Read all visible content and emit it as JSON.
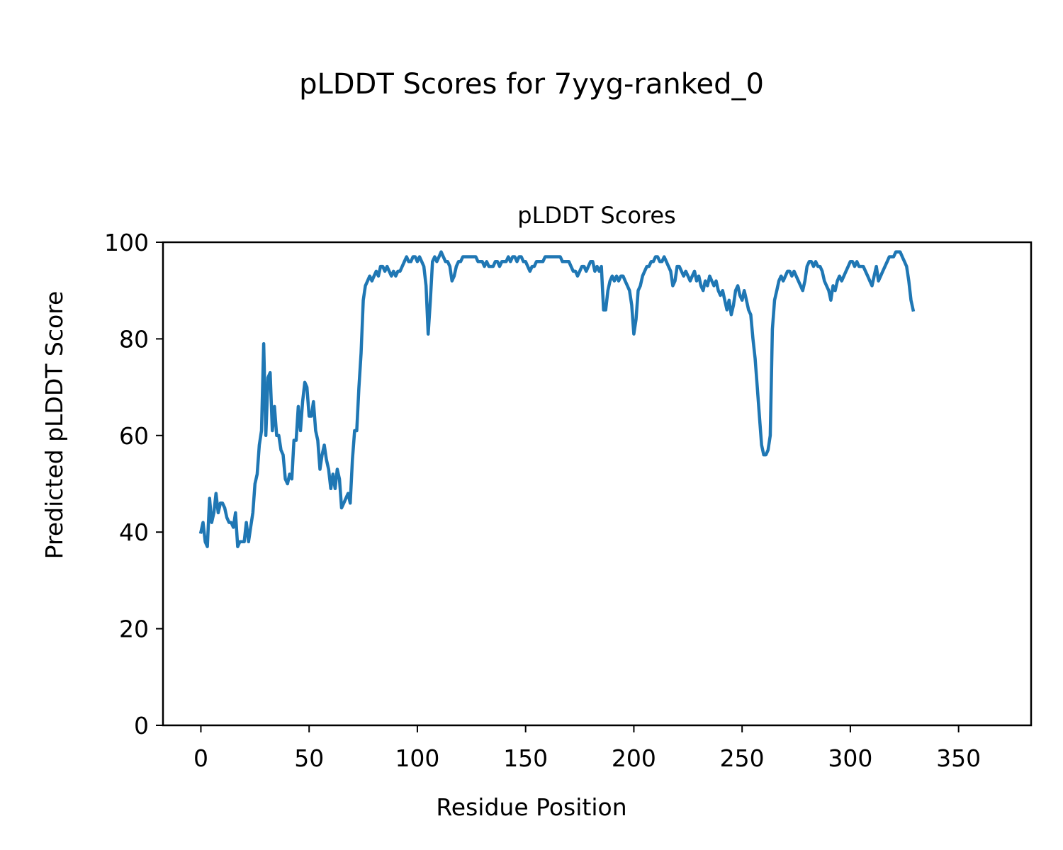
{
  "figure": {
    "suptitle": "pLDDT Scores for 7yyg-ranked_0"
  },
  "chart_data": {
    "type": "line",
    "title": "pLDDT Scores",
    "xlabel": "Residue Position",
    "ylabel": "Predicted pLDDT Score",
    "xlim": [
      -17.5,
      383.5
    ],
    "ylim": [
      0,
      100
    ],
    "xticks": [
      0,
      50,
      100,
      150,
      200,
      250,
      300,
      350
    ],
    "yticks": [
      0,
      20,
      40,
      60,
      80,
      100
    ],
    "grid": false,
    "legend": "none",
    "series": [
      {
        "color": "#1f77b4",
        "points": [
          [
            0,
            40
          ],
          [
            1,
            42
          ],
          [
            2,
            38
          ],
          [
            3,
            37
          ],
          [
            4,
            47
          ],
          [
            5,
            42
          ],
          [
            6,
            44
          ],
          [
            7,
            48
          ],
          [
            8,
            44
          ],
          [
            9,
            46
          ],
          [
            10,
            46
          ],
          [
            11,
            45
          ],
          [
            12,
            43
          ],
          [
            13,
            42
          ],
          [
            14,
            42
          ],
          [
            15,
            41
          ],
          [
            16,
            44
          ],
          [
            17,
            37
          ],
          [
            18,
            38
          ],
          [
            19,
            38
          ],
          [
            20,
            38
          ],
          [
            21,
            42
          ],
          [
            22,
            38
          ],
          [
            23,
            41
          ],
          [
            24,
            44
          ],
          [
            25,
            50
          ],
          [
            26,
            52
          ],
          [
            27,
            58
          ],
          [
            28,
            61
          ],
          [
            29,
            79
          ],
          [
            30,
            60
          ],
          [
            31,
            72
          ],
          [
            32,
            73
          ],
          [
            33,
            61
          ],
          [
            34,
            66
          ],
          [
            35,
            60
          ],
          [
            36,
            60
          ],
          [
            37,
            57
          ],
          [
            38,
            56
          ],
          [
            39,
            51
          ],
          [
            40,
            50
          ],
          [
            41,
            52
          ],
          [
            42,
            51
          ],
          [
            43,
            59
          ],
          [
            44,
            59
          ],
          [
            45,
            66
          ],
          [
            46,
            61
          ],
          [
            47,
            67
          ],
          [
            48,
            71
          ],
          [
            49,
            70
          ],
          [
            50,
            64
          ],
          [
            51,
            64
          ],
          [
            52,
            67
          ],
          [
            53,
            61
          ],
          [
            54,
            59
          ],
          [
            55,
            53
          ],
          [
            56,
            56
          ],
          [
            57,
            58
          ],
          [
            58,
            55
          ],
          [
            59,
            53
          ],
          [
            60,
            49
          ],
          [
            61,
            52
          ],
          [
            62,
            49
          ],
          [
            63,
            53
          ],
          [
            64,
            51
          ],
          [
            65,
            45
          ],
          [
            66,
            46
          ],
          [
            67,
            47
          ],
          [
            68,
            48
          ],
          [
            69,
            46
          ],
          [
            70,
            55
          ],
          [
            71,
            61
          ],
          [
            72,
            61
          ],
          [
            73,
            70
          ],
          [
            74,
            77
          ],
          [
            75,
            88
          ],
          [
            76,
            91
          ],
          [
            77,
            92
          ],
          [
            78,
            93
          ],
          [
            79,
            92
          ],
          [
            80,
            93
          ],
          [
            81,
            94
          ],
          [
            82,
            93
          ],
          [
            83,
            95
          ],
          [
            84,
            95
          ],
          [
            85,
            94
          ],
          [
            86,
            95
          ],
          [
            87,
            94
          ],
          [
            88,
            93
          ],
          [
            89,
            94
          ],
          [
            90,
            93
          ],
          [
            91,
            94
          ],
          [
            92,
            94
          ],
          [
            93,
            95
          ],
          [
            94,
            96
          ],
          [
            95,
            97
          ],
          [
            96,
            96
          ],
          [
            97,
            96
          ],
          [
            98,
            97
          ],
          [
            99,
            97
          ],
          [
            100,
            96
          ],
          [
            101,
            97
          ],
          [
            102,
            96
          ],
          [
            103,
            95
          ],
          [
            104,
            91
          ],
          [
            105,
            81
          ],
          [
            106,
            88
          ],
          [
            107,
            96
          ],
          [
            108,
            97
          ],
          [
            109,
            96
          ],
          [
            110,
            97
          ],
          [
            111,
            98
          ],
          [
            112,
            97
          ],
          [
            113,
            96
          ],
          [
            114,
            96
          ],
          [
            115,
            95
          ],
          [
            116,
            92
          ],
          [
            117,
            93
          ],
          [
            118,
            95
          ],
          [
            119,
            96
          ],
          [
            120,
            96
          ],
          [
            121,
            97
          ],
          [
            122,
            97
          ],
          [
            123,
            97
          ],
          [
            124,
            97
          ],
          [
            125,
            97
          ],
          [
            126,
            97
          ],
          [
            127,
            97
          ],
          [
            128,
            96
          ],
          [
            129,
            96
          ],
          [
            130,
            96
          ],
          [
            131,
            95
          ],
          [
            132,
            96
          ],
          [
            133,
            95
          ],
          [
            134,
            95
          ],
          [
            135,
            95
          ],
          [
            136,
            96
          ],
          [
            137,
            96
          ],
          [
            138,
            95
          ],
          [
            139,
            96
          ],
          [
            140,
            96
          ],
          [
            141,
            96
          ],
          [
            142,
            97
          ],
          [
            143,
            96
          ],
          [
            144,
            97
          ],
          [
            145,
            97
          ],
          [
            146,
            96
          ],
          [
            147,
            97
          ],
          [
            148,
            97
          ],
          [
            149,
            96
          ],
          [
            150,
            96
          ],
          [
            151,
            95
          ],
          [
            152,
            94
          ],
          [
            153,
            95
          ],
          [
            154,
            95
          ],
          [
            155,
            96
          ],
          [
            156,
            96
          ],
          [
            157,
            96
          ],
          [
            158,
            96
          ],
          [
            159,
            97
          ],
          [
            160,
            97
          ],
          [
            161,
            97
          ],
          [
            162,
            97
          ],
          [
            163,
            97
          ],
          [
            164,
            97
          ],
          [
            165,
            97
          ],
          [
            166,
            97
          ],
          [
            167,
            96
          ],
          [
            168,
            96
          ],
          [
            169,
            96
          ],
          [
            170,
            96
          ],
          [
            171,
            95
          ],
          [
            172,
            94
          ],
          [
            173,
            94
          ],
          [
            174,
            93
          ],
          [
            175,
            94
          ],
          [
            176,
            95
          ],
          [
            177,
            95
          ],
          [
            178,
            94
          ],
          [
            179,
            95
          ],
          [
            180,
            96
          ],
          [
            181,
            96
          ],
          [
            182,
            94
          ],
          [
            183,
            95
          ],
          [
            184,
            94
          ],
          [
            185,
            95
          ],
          [
            186,
            86
          ],
          [
            187,
            86
          ],
          [
            188,
            90
          ],
          [
            189,
            92
          ],
          [
            190,
            93
          ],
          [
            191,
            92
          ],
          [
            192,
            93
          ],
          [
            193,
            92
          ],
          [
            194,
            93
          ],
          [
            195,
            93
          ],
          [
            196,
            92
          ],
          [
            197,
            91
          ],
          [
            198,
            90
          ],
          [
            199,
            87
          ],
          [
            200,
            81
          ],
          [
            201,
            84
          ],
          [
            202,
            90
          ],
          [
            203,
            91
          ],
          [
            204,
            93
          ],
          [
            205,
            94
          ],
          [
            206,
            95
          ],
          [
            207,
            95
          ],
          [
            208,
            96
          ],
          [
            209,
            96
          ],
          [
            210,
            97
          ],
          [
            211,
            97
          ],
          [
            212,
            96
          ],
          [
            213,
            96
          ],
          [
            214,
            97
          ],
          [
            215,
            96
          ],
          [
            216,
            95
          ],
          [
            217,
            94
          ],
          [
            218,
            91
          ],
          [
            219,
            92
          ],
          [
            220,
            95
          ],
          [
            221,
            95
          ],
          [
            222,
            94
          ],
          [
            223,
            93
          ],
          [
            224,
            94
          ],
          [
            225,
            93
          ],
          [
            226,
            92
          ],
          [
            227,
            93
          ],
          [
            228,
            94
          ],
          [
            229,
            92
          ],
          [
            230,
            93
          ],
          [
            231,
            91
          ],
          [
            232,
            90
          ],
          [
            233,
            92
          ],
          [
            234,
            91
          ],
          [
            235,
            93
          ],
          [
            236,
            92
          ],
          [
            237,
            91
          ],
          [
            238,
            92
          ],
          [
            239,
            90
          ],
          [
            240,
            89
          ],
          [
            241,
            90
          ],
          [
            242,
            88
          ],
          [
            243,
            86
          ],
          [
            244,
            88
          ],
          [
            245,
            85
          ],
          [
            246,
            87
          ],
          [
            247,
            90
          ],
          [
            248,
            91
          ],
          [
            249,
            89
          ],
          [
            250,
            88
          ],
          [
            251,
            90
          ],
          [
            252,
            88
          ],
          [
            253,
            86
          ],
          [
            254,
            85
          ],
          [
            255,
            80
          ],
          [
            256,
            76
          ],
          [
            257,
            70
          ],
          [
            258,
            64
          ],
          [
            259,
            58
          ],
          [
            260,
            56
          ],
          [
            261,
            56
          ],
          [
            262,
            57
          ],
          [
            263,
            60
          ],
          [
            264,
            82
          ],
          [
            265,
            88
          ],
          [
            266,
            90
          ],
          [
            267,
            92
          ],
          [
            268,
            93
          ],
          [
            269,
            92
          ],
          [
            270,
            93
          ],
          [
            271,
            94
          ],
          [
            272,
            94
          ],
          [
            273,
            93
          ],
          [
            274,
            94
          ],
          [
            275,
            93
          ],
          [
            276,
            92
          ],
          [
            277,
            91
          ],
          [
            278,
            90
          ],
          [
            279,
            92
          ],
          [
            280,
            95
          ],
          [
            281,
            96
          ],
          [
            282,
            96
          ],
          [
            283,
            95
          ],
          [
            284,
            96
          ],
          [
            285,
            95
          ],
          [
            286,
            95
          ],
          [
            287,
            94
          ],
          [
            288,
            92
          ],
          [
            289,
            91
          ],
          [
            290,
            90
          ],
          [
            291,
            88
          ],
          [
            292,
            91
          ],
          [
            293,
            90
          ],
          [
            294,
            92
          ],
          [
            295,
            93
          ],
          [
            296,
            92
          ],
          [
            297,
            93
          ],
          [
            298,
            94
          ],
          [
            299,
            95
          ],
          [
            300,
            96
          ],
          [
            301,
            96
          ],
          [
            302,
            95
          ],
          [
            303,
            96
          ],
          [
            304,
            95
          ],
          [
            305,
            95
          ],
          [
            306,
            95
          ],
          [
            307,
            94
          ],
          [
            308,
            93
          ],
          [
            309,
            92
          ],
          [
            310,
            91
          ],
          [
            311,
            93
          ],
          [
            312,
            95
          ],
          [
            313,
            92
          ],
          [
            314,
            93
          ],
          [
            315,
            94
          ],
          [
            316,
            95
          ],
          [
            317,
            96
          ],
          [
            318,
            97
          ],
          [
            319,
            97
          ],
          [
            320,
            97
          ],
          [
            321,
            98
          ],
          [
            322,
            98
          ],
          [
            323,
            98
          ],
          [
            324,
            97
          ],
          [
            325,
            96
          ],
          [
            326,
            95
          ],
          [
            327,
            92
          ],
          [
            328,
            88
          ],
          [
            329,
            86
          ]
        ]
      }
    ]
  }
}
